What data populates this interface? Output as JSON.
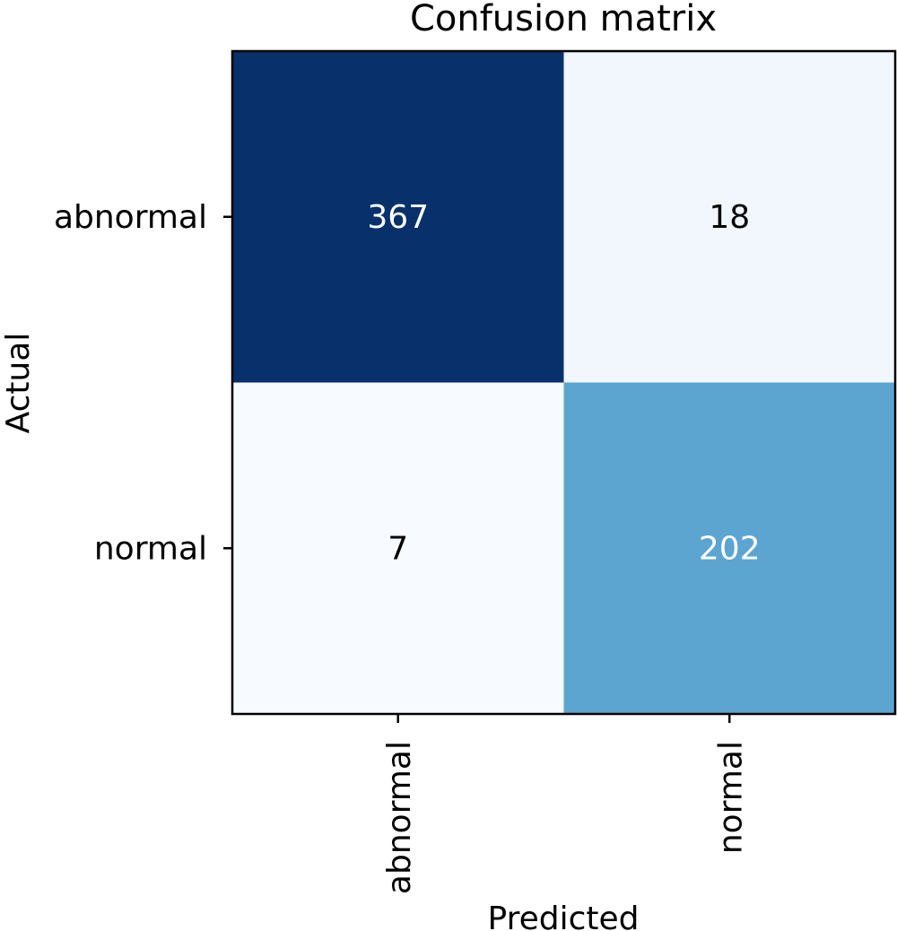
{
  "chart_data": {
    "type": "heatmap",
    "title": "Confusion matrix",
    "xlabel": "Predicted",
    "ylabel": "Actual",
    "row_labels": [
      "abnormal",
      "normal"
    ],
    "col_labels": [
      "abnormal",
      "normal"
    ],
    "values": [
      [
        367,
        18
      ],
      [
        7,
        202
      ]
    ],
    "colormap": "Blues",
    "grid": false
  }
}
